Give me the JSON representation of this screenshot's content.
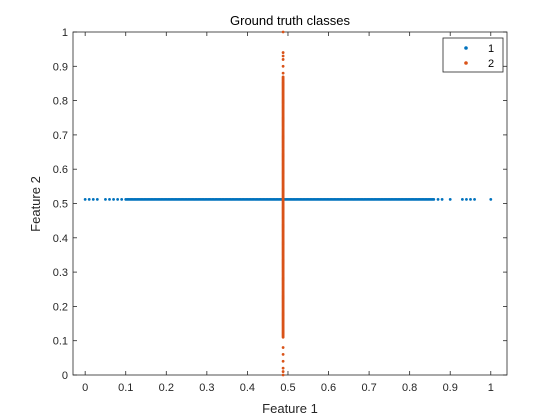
{
  "chart_data": {
    "type": "scatter",
    "title": "Ground truth classes",
    "xlabel": "Feature 1",
    "ylabel": "Feature 2",
    "xlim": [
      -0.03,
      1.04
    ],
    "ylim": [
      0,
      1
    ],
    "xticks": [
      "0",
      "0.1",
      "0.2",
      "0.3",
      "0.4",
      "0.5",
      "0.6",
      "0.7",
      "0.8",
      "0.9",
      "1"
    ],
    "yticks": [
      "0",
      "0.1",
      "0.2",
      "0.3",
      "0.4",
      "0.5",
      "0.6",
      "0.7",
      "0.8",
      "0.9",
      "1"
    ],
    "grid": false,
    "legend_position": "top-right",
    "series": [
      {
        "name": "1",
        "color": "#0072BD",
        "y_constant": 0.512,
        "x_dense_range": [
          0.1,
          0.86
        ],
        "x_sparse": [
          0.0,
          0.01,
          0.02,
          0.03,
          0.05,
          0.06,
          0.07,
          0.08,
          0.09,
          0.87,
          0.88,
          0.9,
          0.93,
          0.94,
          0.95,
          0.96,
          1.0
        ]
      },
      {
        "name": "2",
        "color": "#D95319",
        "x_constant": 0.488,
        "y_dense_range": [
          0.11,
          0.87
        ],
        "y_sparse": [
          0.0,
          0.01,
          0.02,
          0.04,
          0.06,
          0.08,
          0.88,
          0.9,
          0.92,
          0.93,
          0.94,
          1.0
        ]
      }
    ]
  }
}
